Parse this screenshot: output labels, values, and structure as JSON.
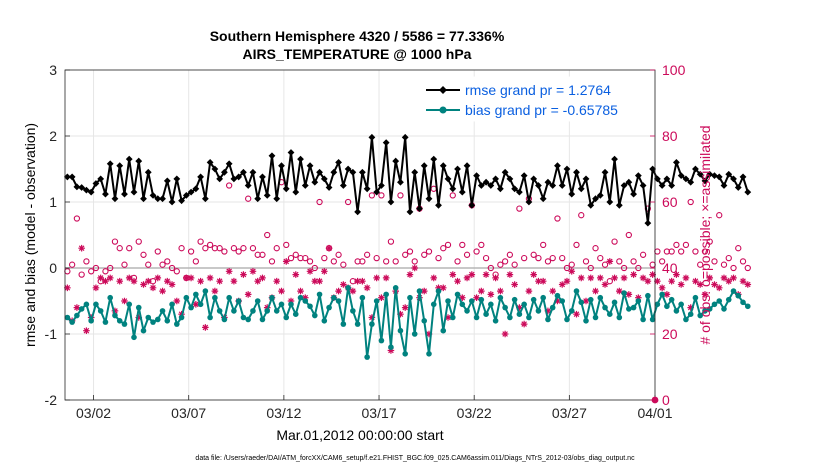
{
  "chart_data": {
    "type": "line",
    "title_line1": "Southern Hemisphere 4320 / 5586 = 77.336%",
    "title_line2": "AIRS_TEMPERATURE @ 1000 hPa",
    "xlabel": "Mar.01,2012 00:00:00 start",
    "ylabel_left": "rmse and bias (model - observation)",
    "ylabel_right": "# of obs: o=possible; ×=assimilated",
    "footer": "data file: /Users/raeder/DAI/ATM_forcXX/CAM6_setup/f.e21.FHIST_BGC.f09_025.CAM6assim.011/Diags_NTrS_2012-03/obs_diag_output.nc",
    "xlim": [
      0.5,
      31.5
    ],
    "ylim_left": [
      -2,
      3
    ],
    "ylim_right": [
      0,
      100
    ],
    "x_ticks": [
      {
        "v": 2,
        "label": "03/02"
      },
      {
        "v": 7,
        "label": "03/07"
      },
      {
        "v": 12,
        "label": "03/12"
      },
      {
        "v": 17,
        "label": "03/17"
      },
      {
        "v": 22,
        "label": "03/22"
      },
      {
        "v": 27,
        "label": "03/27"
      },
      {
        "v": 31.5,
        "label": "04/01"
      }
    ],
    "y_ticks_left": [
      {
        "v": -2,
        "label": "-2"
      },
      {
        "v": -1,
        "label": "-1"
      },
      {
        "v": 0,
        "label": "0"
      },
      {
        "v": 1,
        "label": "1"
      },
      {
        "v": 2,
        "label": "2"
      },
      {
        "v": 3,
        "label": "3"
      }
    ],
    "y_ticks_right": [
      {
        "v": 0,
        "label": "0"
      },
      {
        "v": 20,
        "label": "20"
      },
      {
        "v": 40,
        "label": "40"
      },
      {
        "v": 60,
        "label": "60"
      },
      {
        "v": 80,
        "label": "80"
      },
      {
        "v": 100,
        "label": "100"
      }
    ],
    "x_start": 0.625,
    "x_step": 0.25,
    "series": [
      {
        "name": "rmse",
        "legend": "rmse grand pr = 1.2764",
        "color": "#000000",
        "values": [
          1.38,
          1.38,
          1.23,
          1.22,
          1.18,
          1.15,
          1.28,
          1.35,
          1.12,
          1.58,
          1.05,
          1.55,
          1.12,
          1.65,
          1.15,
          1.62,
          1.05,
          1.45,
          1.1,
          1.05,
          1.05,
          1.32,
          1.0,
          1.35,
          1.02,
          1.1,
          1.15,
          1.2,
          1.38,
          1.05,
          1.6,
          1.5,
          1.35,
          1.45,
          1.58,
          1.35,
          1.38,
          1.45,
          1.25,
          1.45,
          1.05,
          1.38,
          1.1,
          1.7,
          1.05,
          1.55,
          1.2,
          1.75,
          1.15,
          1.65,
          1.25,
          1.55,
          1.3,
          1.45,
          1.35,
          1.22,
          1.45,
          1.6,
          1.25,
          1.5,
          1.45,
          0.85,
          1.45,
          1.2,
          1.98,
          1.15,
          1.25,
          1.9,
          1.0,
          1.62,
          1.3,
          1.98,
          0.85,
          1.45,
          0.9,
          1.55,
          1.05,
          1.65,
          0.95,
          1.55,
          1.35,
          1.2,
          1.5,
          1.15,
          1.55,
          0.95,
          1.4,
          1.25,
          1.3,
          1.25,
          1.35,
          1.2,
          1.45,
          1.35,
          1.2,
          1.15,
          1.4,
          1.0,
          1.35,
          1.25,
          1.05,
          1.3,
          1.25,
          1.55,
          1.25,
          1.5,
          1.12,
          1.45,
          1.2,
          1.35,
          0.95,
          1.05,
          1.1,
          1.45,
          1.0,
          1.65,
          0.95,
          1.25,
          1.3,
          1.12,
          1.4,
          1.25,
          0.68,
          1.5,
          1.35,
          1.25,
          1.35,
          1.25,
          1.6,
          1.4,
          1.35,
          1.3,
          1.5,
          1.42,
          1.32,
          1.42,
          1.4,
          1.38,
          1.25,
          1.42,
          1.35,
          1.22,
          1.38,
          1.15
        ]
      },
      {
        "name": "bias",
        "legend": "bias grand pr = -0.65785",
        "color": "#00827f",
        "values": [
          -0.75,
          -0.82,
          -0.72,
          -0.62,
          -0.55,
          -0.8,
          -0.55,
          -0.65,
          -0.82,
          -0.45,
          -0.72,
          -0.8,
          -0.85,
          -0.55,
          -1.05,
          -0.6,
          -0.95,
          -0.75,
          -0.82,
          -0.78,
          -0.65,
          -0.8,
          -0.55,
          -0.85,
          -0.75,
          -0.45,
          -0.6,
          -0.4,
          -0.55,
          -0.35,
          -0.75,
          -0.45,
          -0.65,
          -0.78,
          -0.45,
          -0.65,
          -0.5,
          -0.75,
          -0.78,
          -0.65,
          -0.5,
          -0.78,
          -0.65,
          -0.45,
          -0.65,
          -0.55,
          -0.75,
          -0.55,
          -0.7,
          -0.45,
          -0.5,
          -0.58,
          -0.72,
          -0.4,
          -0.8,
          -0.6,
          -0.45,
          -0.5,
          -0.85,
          -0.3,
          -0.65,
          -0.85,
          -0.45,
          -1.35,
          -0.85,
          -0.5,
          -1.1,
          -0.4,
          -1.2,
          -0.3,
          -0.95,
          -1.3,
          -0.45,
          -1.0,
          -0.35,
          -0.8,
          -1.3,
          -0.55,
          -0.35,
          -0.95,
          -0.5,
          -0.75,
          -0.4,
          -0.55,
          -0.65,
          -0.5,
          -0.75,
          -0.48,
          -0.7,
          -0.55,
          -0.8,
          -0.45,
          -0.6,
          -0.75,
          -0.48,
          -0.7,
          -0.55,
          -0.75,
          -0.48,
          -0.65,
          -0.45,
          -0.78,
          -0.6,
          -0.42,
          -0.5,
          -0.78,
          -0.65,
          -0.35,
          -0.52,
          -0.8,
          -0.48,
          -0.75,
          -0.45,
          -0.6,
          -0.7,
          -0.52,
          -0.75,
          -0.38,
          -0.62,
          -0.6,
          -0.5,
          -0.78,
          -0.42,
          -0.78,
          -0.55,
          -0.4,
          -0.58,
          -0.48,
          -0.65,
          -0.55,
          -0.78,
          -0.7,
          -0.45,
          -0.72,
          -0.65,
          -0.62,
          -0.55,
          -0.5,
          -0.62,
          -0.48,
          -0.35,
          -0.42,
          -0.52,
          -0.58
        ]
      }
    ],
    "obs_possible": {
      "name": "possible",
      "marker": "circle",
      "color": "#cc0a5a",
      "values": [
        39,
        41,
        55,
        38,
        42,
        39,
        40,
        36,
        39,
        40,
        48,
        46,
        41,
        46,
        37,
        48,
        44,
        41,
        36,
        45,
        41,
        42,
        40,
        39,
        46,
        37,
        45,
        42,
        48,
        46,
        47,
        46,
        46,
        45,
        65,
        46,
        45,
        46,
        61,
        46,
        44,
        44,
        50,
        42,
        46,
        66,
        47,
        43,
        44,
        43,
        43,
        42,
        40,
        60,
        43,
        46,
        42,
        44,
        41,
        60,
        36,
        42,
        42,
        44,
        62,
        43,
        62,
        42,
        48,
        42,
        62,
        44,
        45,
        42,
        58,
        44,
        45,
        64,
        43,
        46,
        47,
        62,
        42,
        47,
        44,
        59,
        45,
        47,
        43,
        40,
        38,
        41,
        42,
        44,
        41,
        58,
        43,
        61,
        44,
        43,
        47,
        42,
        43,
        55,
        43,
        40,
        41,
        47,
        56,
        42,
        40,
        46,
        43,
        41,
        36,
        48,
        42,
        40,
        50,
        42,
        40,
        44,
        58,
        41,
        45,
        42,
        45,
        45,
        47,
        45,
        47,
        60,
        45,
        41,
        45,
        48,
        42,
        56,
        41,
        43,
        40,
        46,
        42,
        40
      ]
    },
    "obs_assimilated": {
      "name": "assimilated",
      "marker": "asterisk",
      "color": "#cc0a5a",
      "values": [
        34,
        24,
        28,
        46,
        21,
        25,
        34,
        37,
        36,
        37,
        27,
        36,
        30,
        37,
        36,
        25,
        35,
        36,
        34,
        37,
        33,
        36,
        35,
        30,
        26,
        37,
        37,
        29,
        36,
        22,
        37,
        33,
        36,
        25,
        39,
        36,
        30,
        38,
        32,
        39,
        36,
        37,
        28,
        31,
        36,
        33,
        42,
        30,
        38,
        33,
        31,
        39,
        36,
        36,
        39,
        46,
        31,
        33,
        35,
        34,
        33,
        36,
        36,
        34,
        25,
        37,
        31,
        37,
        15,
        33,
        26,
        28,
        38,
        40,
        31,
        33,
        20,
        37,
        34,
        34,
        25,
        38,
        36,
        31,
        37,
        38,
        31,
        33,
        38,
        32,
        37,
        33,
        20,
        38,
        35,
        28,
        23,
        33,
        38,
        36,
        36,
        27,
        33,
        30,
        35,
        36,
        39,
        26,
        37,
        30,
        37,
        33,
        37,
        35,
        42,
        37,
        33,
        37,
        32,
        38,
        31,
        37,
        36,
        38,
        36,
        34,
        32,
        36,
        38,
        35,
        37,
        28,
        36,
        35,
        32,
        37,
        35,
        34,
        37,
        36,
        37,
        32,
        36,
        35
      ]
    },
    "endpoint_marker": {
      "x": 31.5,
      "y_right": 0,
      "color": "#cc0a5a"
    }
  }
}
